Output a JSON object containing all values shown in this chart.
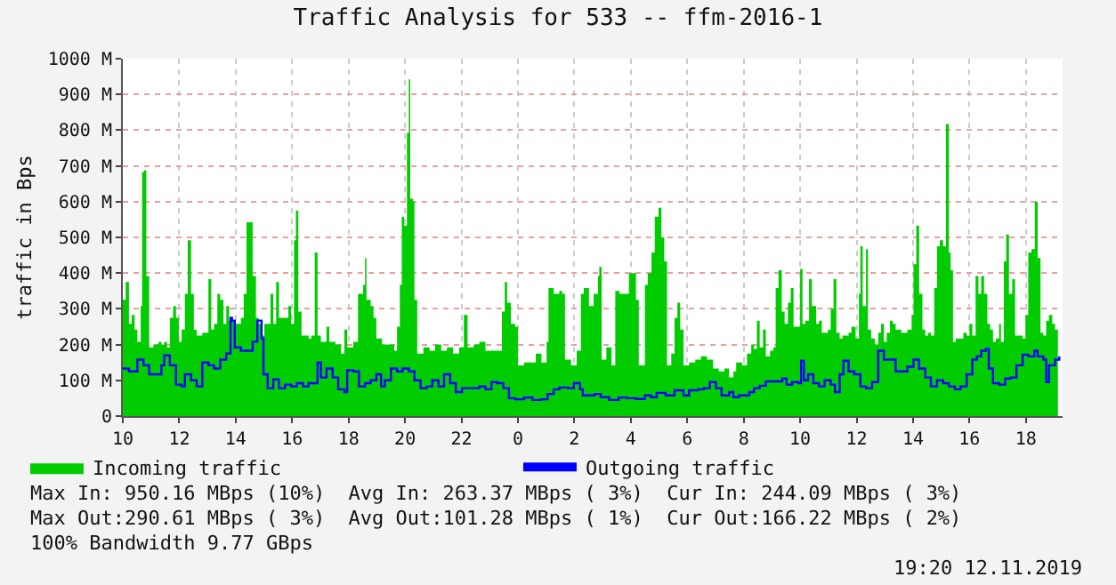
{
  "chart_data": {
    "type": "area",
    "title": "Traffic Analysis for 533 -- ffm-2016-1",
    "ylabel": "traffic in Bps",
    "xlim": [
      "2019-11-11T10:00",
      "2019-11-12T19:18"
    ],
    "xticks": [
      {
        "value": "2019-11-11T10:00",
        "label": "10"
      },
      {
        "value": "2019-11-11T12:00",
        "label": "12"
      },
      {
        "value": "2019-11-11T14:00",
        "label": "14"
      },
      {
        "value": "2019-11-11T16:00",
        "label": "16"
      },
      {
        "value": "2019-11-11T18:00",
        "label": "18"
      },
      {
        "value": "2019-11-11T20:00",
        "label": "20"
      },
      {
        "value": "2019-11-11T22:00",
        "label": "22"
      },
      {
        "value": "2019-11-12T00:00",
        "label": "0"
      },
      {
        "value": "2019-11-12T02:00",
        "label": "2"
      },
      {
        "value": "2019-11-12T04:00",
        "label": "4"
      },
      {
        "value": "2019-11-12T06:00",
        "label": "6"
      },
      {
        "value": "2019-11-12T08:00",
        "label": "8"
      },
      {
        "value": "2019-11-12T10:00",
        "label": "10"
      },
      {
        "value": "2019-11-12T12:00",
        "label": "12"
      },
      {
        "value": "2019-11-12T14:00",
        "label": "14"
      },
      {
        "value": "2019-11-12T16:00",
        "label": "16"
      },
      {
        "value": "2019-11-12T18:00",
        "label": "18"
      }
    ],
    "ylim": [
      0,
      1000
    ],
    "yticks": [
      0,
      {
        "value": 100,
        "label": "100 M"
      },
      {
        "value": 200,
        "label": "200 M"
      },
      {
        "value": 300,
        "label": "300 M"
      },
      {
        "value": 400,
        "label": "400 M"
      },
      {
        "value": 500,
        "label": "500 M"
      },
      {
        "value": 600,
        "label": "600 M"
      },
      {
        "value": 700,
        "label": "700 M"
      },
      {
        "value": 800,
        "label": "800 M"
      },
      {
        "value": 900,
        "label": "900 M"
      },
      {
        "value": 1000,
        "label": "1000 M"
      }
    ],
    "grid": true,
    "legend": "bottom",
    "series": [
      {
        "name": "Incoming traffic",
        "color": "#00cc00",
        "x": [
          "2019-11-11T10:00",
          "2019-11-11T10:06",
          "2019-11-11T10:13",
          "2019-11-11T10:19",
          "2019-11-11T10:25",
          "2019-11-11T10:31",
          "2019-11-11T10:38",
          "2019-11-11T10:41",
          "2019-11-11T10:45",
          "2019-11-11T10:50",
          "2019-11-11T10:56",
          "2019-11-11T11:05",
          "2019-11-11T11:16",
          "2019-11-11T11:22",
          "2019-11-11T11:28",
          "2019-11-11T11:34",
          "2019-11-11T11:40",
          "2019-11-11T11:47",
          "2019-11-11T11:53",
          "2019-11-11T11:59",
          "2019-11-11T12:05",
          "2019-11-11T12:12",
          "2019-11-11T12:18",
          "2019-11-11T12:25",
          "2019-11-11T12:31",
          "2019-11-11T12:37",
          "2019-11-11T12:43",
          "2019-11-11T12:49",
          "2019-11-11T12:56",
          "2019-11-11T13:02",
          "2019-11-11T13:08",
          "2019-11-11T13:14",
          "2019-11-11T13:21",
          "2019-11-11T13:27",
          "2019-11-11T13:34",
          "2019-11-11T13:40",
          "2019-11-11T13:46",
          "2019-11-11T13:58",
          "2019-11-11T14:11",
          "2019-11-11T14:17",
          "2019-11-11T14:23",
          "2019-11-11T14:30",
          "2019-11-11T14:36",
          "2019-11-11T14:43",
          "2019-11-11T14:49",
          "2019-11-11T14:55",
          "2019-11-11T15:01",
          "2019-11-11T15:08",
          "2019-11-11T15:14",
          "2019-11-11T15:20",
          "2019-11-11T15:26",
          "2019-11-11T15:32",
          "2019-11-11T15:39",
          "2019-11-11T15:52",
          "2019-11-11T15:58",
          "2019-11-11T16:04",
          "2019-11-11T16:08",
          "2019-11-11T16:13",
          "2019-11-11T16:20",
          "2019-11-11T16:29",
          "2019-11-11T16:35",
          "2019-11-11T16:41",
          "2019-11-11T16:48",
          "2019-11-11T16:54",
          "2019-11-11T17:01",
          "2019-11-11T17:13",
          "2019-11-11T17:19",
          "2019-11-11T17:32",
          "2019-11-11T17:44",
          "2019-11-11T17:51",
          "2019-11-11T17:57",
          "2019-11-11T18:03",
          "2019-11-11T18:10",
          "2019-11-11T18:20",
          "2019-11-11T18:26",
          "2019-11-11T18:31",
          "2019-11-11T18:35",
          "2019-11-11T18:38",
          "2019-11-11T18:47",
          "2019-11-11T18:53",
          "2019-11-11T18:59",
          "2019-11-11T19:11",
          "2019-11-11T19:24",
          "2019-11-11T19:37",
          "2019-11-11T19:43",
          "2019-11-11T19:49",
          "2019-11-11T19:53",
          "2019-11-11T19:58",
          "2019-11-11T20:04",
          "2019-11-11T20:08",
          "2019-11-11T20:11",
          "2019-11-11T20:17",
          "2019-11-11T20:20",
          "2019-11-11T20:26",
          "2019-11-11T20:39",
          "2019-11-11T20:52",
          "2019-11-11T21:04",
          "2019-11-11T21:17",
          "2019-11-11T21:29",
          "2019-11-11T21:42",
          "2019-11-11T21:55",
          "2019-11-11T22:05",
          "2019-11-11T22:13",
          "2019-11-11T22:26",
          "2019-11-11T22:38",
          "2019-11-11T22:51",
          "2019-11-11T23:04",
          "2019-11-11T23:16",
          "2019-11-11T23:26",
          "2019-11-11T23:32",
          "2019-11-11T23:37",
          "2019-11-11T23:45",
          "2019-11-11T23:54",
          "2019-11-12T00:00",
          "2019-11-12T00:13",
          "2019-11-12T00:25",
          "2019-11-12T00:38",
          "2019-11-12T00:50",
          "2019-11-12T01:01",
          "2019-11-12T01:05",
          "2019-11-12T01:16",
          "2019-11-12T01:28",
          "2019-11-12T01:34",
          "2019-11-12T01:40",
          "2019-11-12T01:53",
          "2019-11-12T02:05",
          "2019-11-12T02:14",
          "2019-11-12T02:20",
          "2019-11-12T02:31",
          "2019-11-12T02:41",
          "2019-11-12T02:50",
          "2019-11-12T02:53",
          "2019-11-12T02:58",
          "2019-11-12T03:08",
          "2019-11-12T03:19",
          "2019-11-12T03:27",
          "2019-11-12T03:36",
          "2019-11-12T03:46",
          "2019-11-12T03:56",
          "2019-11-12T04:05",
          "2019-11-12T04:11",
          "2019-11-12T04:17",
          "2019-11-12T04:30",
          "2019-11-12T04:36",
          "2019-11-12T04:44",
          "2019-11-12T04:51",
          "2019-11-12T04:59",
          "2019-11-12T05:05",
          "2019-11-12T05:11",
          "2019-11-12T05:17",
          "2019-11-12T05:26",
          "2019-11-12T05:33",
          "2019-11-12T05:39",
          "2019-11-12T05:45",
          "2019-11-12T05:52",
          "2019-11-12T06:04",
          "2019-11-12T06:17",
          "2019-11-12T06:29",
          "2019-11-12T06:42",
          "2019-11-12T06:55",
          "2019-11-12T07:07",
          "2019-11-12T07:19",
          "2019-11-12T07:29",
          "2019-11-12T07:38",
          "2019-11-12T07:44",
          "2019-11-12T07:57",
          "2019-11-12T08:07",
          "2019-11-12T08:16",
          "2019-11-12T08:22",
          "2019-11-12T08:28",
          "2019-11-12T08:34",
          "2019-11-12T08:41",
          "2019-11-12T08:47",
          "2019-11-12T08:56",
          "2019-11-12T09:03",
          "2019-11-12T09:08",
          "2019-11-12T09:14",
          "2019-11-12T09:21",
          "2019-11-12T09:27",
          "2019-11-12T09:34",
          "2019-11-12T09:40",
          "2019-11-12T09:46",
          "2019-11-12T09:52",
          "2019-11-12T10:00",
          "2019-11-12T10:05",
          "2019-11-12T10:11",
          "2019-11-12T10:19",
          "2019-11-12T10:25",
          "2019-11-12T10:34",
          "2019-11-12T10:40",
          "2019-11-12T10:46",
          "2019-11-12T10:52",
          "2019-11-12T10:59",
          "2019-11-12T11:05",
          "2019-11-12T11:11",
          "2019-11-12T11:17",
          "2019-11-12T11:24",
          "2019-11-12T11:30",
          "2019-11-12T11:43",
          "2019-11-12T11:49",
          "2019-11-12T11:58",
          "2019-11-12T12:05",
          "2019-11-12T12:08",
          "2019-11-12T12:13",
          "2019-11-12T12:20",
          "2019-11-12T12:24",
          "2019-11-12T12:31",
          "2019-11-12T12:39",
          "2019-11-12T12:46",
          "2019-11-12T12:52",
          "2019-11-12T12:58",
          "2019-11-12T13:04",
          "2019-11-12T13:11",
          "2019-11-12T13:17",
          "2019-11-12T13:23",
          "2019-11-12T13:35",
          "2019-11-12T13:48",
          "2019-11-12T13:57",
          "2019-11-12T14:01",
          "2019-11-12T14:07",
          "2019-11-12T14:13",
          "2019-11-12T14:20",
          "2019-11-12T14:26",
          "2019-11-12T14:32",
          "2019-11-12T14:38",
          "2019-11-12T14:45",
          "2019-11-12T14:51",
          "2019-11-12T14:57",
          "2019-11-12T15:04",
          "2019-11-12T15:10",
          "2019-11-12T15:16",
          "2019-11-12T15:20",
          "2019-11-12T15:25",
          "2019-11-12T15:31",
          "2019-11-12T15:41",
          "2019-11-12T15:47",
          "2019-11-12T15:54",
          "2019-11-12T16:00",
          "2019-11-12T16:06",
          "2019-11-12T16:13",
          "2019-11-12T16:19",
          "2019-11-12T16:25",
          "2019-11-12T16:31",
          "2019-11-12T16:38",
          "2019-11-12T16:44",
          "2019-11-12T16:50",
          "2019-11-12T16:56",
          "2019-11-12T17:03",
          "2019-11-12T17:07",
          "2019-11-12T17:13",
          "2019-11-12T17:18",
          "2019-11-12T17:24",
          "2019-11-12T17:31",
          "2019-11-12T17:37",
          "2019-11-12T17:47",
          "2019-11-12T17:53",
          "2019-11-12T17:59",
          "2019-11-12T18:05",
          "2019-11-12T18:12",
          "2019-11-12T18:19",
          "2019-11-12T18:25",
          "2019-11-12T18:31",
          "2019-11-12T18:37",
          "2019-11-12T18:43",
          "2019-11-12T18:49",
          "2019-11-12T18:56",
          "2019-11-12T19:02",
          "2019-11-12T19:08"
        ],
        "values": [
          325,
          375,
          258,
          283,
          242,
          208,
          308,
          683,
          688,
          392,
          192,
          200,
          208,
          200,
          208,
          192,
          275,
          308,
          275,
          208,
          242,
          342,
          492,
          342,
          242,
          225,
          225,
          233,
          233,
          383,
          242,
          258,
          342,
          325,
          258,
          308,
          267,
          258,
          275,
          342,
          542,
          542,
          392,
          275,
          258,
          225,
          258,
          258,
          342,
          258,
          375,
          275,
          275,
          308,
          258,
          492,
          575,
          292,
          225,
          225,
          217,
          225,
          458,
          225,
          208,
          250,
          208,
          200,
          175,
          242,
          192,
          192,
          208,
          342,
          342,
          367,
          442,
          325,
          308,
          275,
          217,
          200,
          200,
          183,
          250,
          367,
          558,
          533,
          792,
          942,
          608,
          600,
          325,
          175,
          192,
          183,
          200,
          183,
          192,
          175,
          192,
          283,
          192,
          200,
          208,
          183,
          183,
          183,
          292,
          375,
          317,
          258,
          250,
          142,
          150,
          150,
          175,
          150,
          208,
          358,
          342,
          350,
          342,
          158,
          142,
          183,
          342,
          358,
          308,
          342,
          392,
          417,
          158,
          192,
          142,
          350,
          342,
          342,
          400,
          400,
          325,
          142,
          367,
          400,
          458,
          558,
          583,
          500,
          433,
          142,
          175,
          275,
          317,
          242,
          142,
          150,
          158,
          167,
          158,
          133,
          125,
          133,
          108,
          125,
          150,
          142,
          175,
          200,
          188,
          267,
          192,
          242,
          167,
          183,
          192,
          358,
          408,
          292,
          258,
          317,
          358,
          250,
          250,
          412,
          258,
          267,
          383,
          308,
          258,
          267,
          233,
          233,
          242,
          300,
          383,
          233,
          217,
          225,
          233,
          250,
          217,
          342,
          475,
          308,
          467,
          242,
          217,
          200,
          233,
          258,
          208,
          233,
          267,
          258,
          242,
          233,
          242,
          283,
          425,
          533,
          342,
          242,
          225,
          233,
          225,
          358,
          475,
          492,
          475,
          817,
          458,
          408,
          208,
          217,
          217,
          233,
          225,
          258,
          225,
          392,
          342,
          392,
          342,
          258,
          242,
          208,
          217,
          258,
          208,
          433,
          508,
          342,
          383,
          225,
          225,
          217,
          283,
          458,
          467,
          600,
          442,
          233,
          225,
          267,
          283,
          258,
          242,
          247
        ]
      },
      {
        "name": "Outgoing traffic",
        "type": "step",
        "color": "#0000ff",
        "x": [
          "2019-11-11T10:00",
          "2019-11-11T10:13",
          "2019-11-11T10:31",
          "2019-11-11T10:44",
          "2019-11-11T10:56",
          "2019-11-11T11:09",
          "2019-11-11T11:22",
          "2019-11-11T11:28",
          "2019-11-11T11:40",
          "2019-11-11T11:53",
          "2019-11-11T12:05",
          "2019-11-11T12:12",
          "2019-11-11T12:25",
          "2019-11-11T12:37",
          "2019-11-11T12:49",
          "2019-11-11T13:02",
          "2019-11-11T13:14",
          "2019-11-11T13:27",
          "2019-11-11T13:40",
          "2019-11-11T13:49",
          "2019-11-11T13:52",
          "2019-11-11T13:58",
          "2019-11-11T14:11",
          "2019-11-11T14:23",
          "2019-11-11T14:36",
          "2019-11-11T14:46",
          "2019-11-11T14:55",
          "2019-11-11T14:59",
          "2019-11-11T15:08",
          "2019-11-11T15:20",
          "2019-11-11T15:32",
          "2019-11-11T15:45",
          "2019-11-11T15:58",
          "2019-11-11T16:10",
          "2019-11-11T16:23",
          "2019-11-11T16:35",
          "2019-11-11T16:54",
          "2019-11-11T17:01",
          "2019-11-11T17:13",
          "2019-11-11T17:26",
          "2019-11-11T17:38",
          "2019-11-11T17:51",
          "2019-11-11T17:57",
          "2019-11-11T18:10",
          "2019-11-11T18:22",
          "2019-11-11T18:35",
          "2019-11-11T18:47",
          "2019-11-11T18:59",
          "2019-11-11T19:09",
          "2019-11-11T19:17",
          "2019-11-11T19:30",
          "2019-11-11T19:43",
          "2019-11-11T19:55",
          "2019-11-11T20:08",
          "2019-11-11T20:20",
          "2019-11-11T20:33",
          "2019-11-11T20:46",
          "2019-11-11T20:58",
          "2019-11-11T21:11",
          "2019-11-11T21:23",
          "2019-11-11T21:36",
          "2019-11-11T21:48",
          "2019-11-11T22:01",
          "2019-11-11T22:20",
          "2019-11-11T22:38",
          "2019-11-11T22:51",
          "2019-11-11T23:04",
          "2019-11-11T23:16",
          "2019-11-11T23:29",
          "2019-11-11T23:41",
          "2019-11-11T23:54",
          "2019-11-12T00:13",
          "2019-11-12T00:31",
          "2019-11-12T00:50",
          "2019-11-12T01:03",
          "2019-11-12T01:16",
          "2019-11-12T01:28",
          "2019-11-12T01:47",
          "2019-11-12T01:59",
          "2019-11-12T02:12",
          "2019-11-12T02:18",
          "2019-11-12T02:31",
          "2019-11-12T02:43",
          "2019-11-12T02:56",
          "2019-11-12T03:14",
          "2019-11-12T03:34",
          "2019-11-12T03:52",
          "2019-11-12T04:11",
          "2019-11-12T04:30",
          "2019-11-12T04:43",
          "2019-11-12T04:55",
          "2019-11-12T05:14",
          "2019-11-12T05:33",
          "2019-11-12T05:52",
          "2019-11-12T06:04",
          "2019-11-12T06:23",
          "2019-11-12T06:35",
          "2019-11-12T06:48",
          "2019-11-12T07:01",
          "2019-11-12T07:13",
          "2019-11-12T07:29",
          "2019-11-12T07:38",
          "2019-11-12T07:50",
          "2019-11-12T08:03",
          "2019-11-12T08:12",
          "2019-11-12T08:22",
          "2019-11-12T08:34",
          "2019-11-12T08:47",
          "2019-11-12T08:59",
          "2019-11-12T09:12",
          "2019-11-12T09:22",
          "2019-11-12T09:31",
          "2019-11-12T09:43",
          "2019-11-12T09:56",
          "2019-11-12T10:02",
          "2019-11-12T10:08",
          "2019-11-12T10:17",
          "2019-11-12T10:28",
          "2019-11-12T10:40",
          "2019-11-12T10:52",
          "2019-11-12T11:05",
          "2019-11-12T11:14",
          "2019-11-12T11:24",
          "2019-11-12T11:32",
          "2019-11-12T11:43",
          "2019-11-12T11:55",
          "2019-11-12T12:08",
          "2019-11-12T12:20",
          "2019-11-12T12:33",
          "2019-11-12T12:46",
          "2019-11-12T12:58",
          "2019-11-12T13:11",
          "2019-11-12T13:23",
          "2019-11-12T13:35",
          "2019-11-12T13:48",
          "2019-11-12T14:01",
          "2019-11-12T14:13",
          "2019-11-12T14:26",
          "2019-11-12T14:38",
          "2019-11-12T14:51",
          "2019-11-12T15:04",
          "2019-11-12T15:16",
          "2019-11-12T15:29",
          "2019-11-12T15:41",
          "2019-11-12T15:54",
          "2019-11-12T16:06",
          "2019-11-12T16:16",
          "2019-11-12T16:25",
          "2019-11-12T16:35",
          "2019-11-12T16:41",
          "2019-11-12T16:50",
          "2019-11-12T17:03",
          "2019-11-12T17:16",
          "2019-11-12T17:28",
          "2019-11-12T17:40",
          "2019-11-12T17:53",
          "2019-11-12T18:05",
          "2019-11-12T18:18",
          "2019-11-12T18:25",
          "2019-11-12T18:37",
          "2019-11-12T18:43",
          "2019-11-12T18:49",
          "2019-11-12T19:02",
          "2019-11-12T19:11"
        ],
        "values": [
          133,
          125,
          158,
          142,
          117,
          117,
          142,
          170,
          142,
          88,
          83,
          117,
          100,
          83,
          150,
          142,
          133,
          158,
          175,
          275,
          267,
          192,
          183,
          183,
          208,
          267,
          217,
          117,
          78,
          103,
          78,
          88,
          83,
          92,
          83,
          92,
          150,
          108,
          133,
          108,
          75,
          67,
          128,
          125,
          83,
          92,
          100,
          117,
          83,
          100,
          133,
          125,
          133,
          125,
          100,
          78,
          83,
          100,
          83,
          117,
          92,
          67,
          78,
          78,
          83,
          75,
          95,
          92,
          78,
          50,
          47,
          52,
          45,
          47,
          62,
          75,
          80,
          78,
          92,
          75,
          58,
          58,
          62,
          53,
          45,
          52,
          50,
          48,
          58,
          53,
          65,
          58,
          72,
          58,
          72,
          75,
          78,
          95,
          78,
          58,
          67,
          53,
          58,
          58,
          67,
          78,
          85,
          97,
          97,
          97,
          105,
          88,
          95,
          92,
          155,
          100,
          117,
          92,
          83,
          100,
          88,
          67,
          117,
          155,
          125,
          117,
          83,
          78,
          95,
          183,
          158,
          158,
          125,
          125,
          138,
          158,
          133,
          108,
          83,
          100,
          92,
          83,
          75,
          83,
          117,
          158,
          167,
          183,
          188,
          133,
          92,
          88,
          105,
          108,
          142,
          172,
          167,
          183,
          167,
          158,
          95,
          142,
          158,
          167
        ]
      }
    ],
    "annotations": [
      "Max In: 950.16 MBps (10%)  Avg In: 263.37 MBps ( 3%)  Cur In: 244.09 MBps ( 3%)",
      "Max Out:290.61 MBps ( 3%)  Avg Out:101.28 MBps ( 1%)  Cur Out:166.22 MBps ( 2%)",
      "100% Bandwidth 9.77 GBps",
      "19:20 12.11.2019"
    ]
  }
}
